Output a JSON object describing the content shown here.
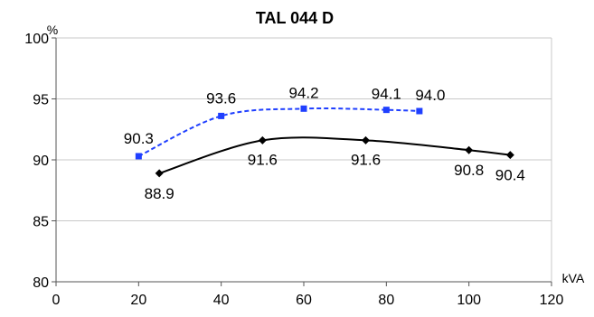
{
  "chart_data": {
    "type": "line",
    "title": "TAL 044 D",
    "ylabel": "%",
    "xlabel": "kVA",
    "xlim": [
      0,
      120
    ],
    "ylim": [
      80,
      100
    ],
    "x_ticks": [
      0,
      20,
      40,
      60,
      80,
      100,
      120
    ],
    "y_ticks": [
      80,
      85,
      90,
      95,
      100
    ],
    "grid": "horizontal",
    "series": [
      {
        "color": "#1f3fff",
        "style": "dashed",
        "marker": "square",
        "points": [
          {
            "x": 20,
            "y": 90.3,
            "label": "90.3"
          },
          {
            "x": 40,
            "y": 93.6,
            "label": "93.6"
          },
          {
            "x": 60,
            "y": 94.2,
            "label": "94.2"
          },
          {
            "x": 80,
            "y": 94.1,
            "label": "94.1"
          },
          {
            "x": 88,
            "y": 94.0,
            "label": "94.0"
          }
        ]
      },
      {
        "color": "#000000",
        "style": "solid",
        "marker": "diamond",
        "points": [
          {
            "x": 25,
            "y": 88.9,
            "label": "88.9"
          },
          {
            "x": 50,
            "y": 91.6,
            "label": "91.6"
          },
          {
            "x": 75,
            "y": 91.6,
            "label": "91.6"
          },
          {
            "x": 100,
            "y": 90.8,
            "label": "90.8"
          },
          {
            "x": 110,
            "y": 90.4,
            "label": "90.4"
          }
        ]
      }
    ]
  }
}
